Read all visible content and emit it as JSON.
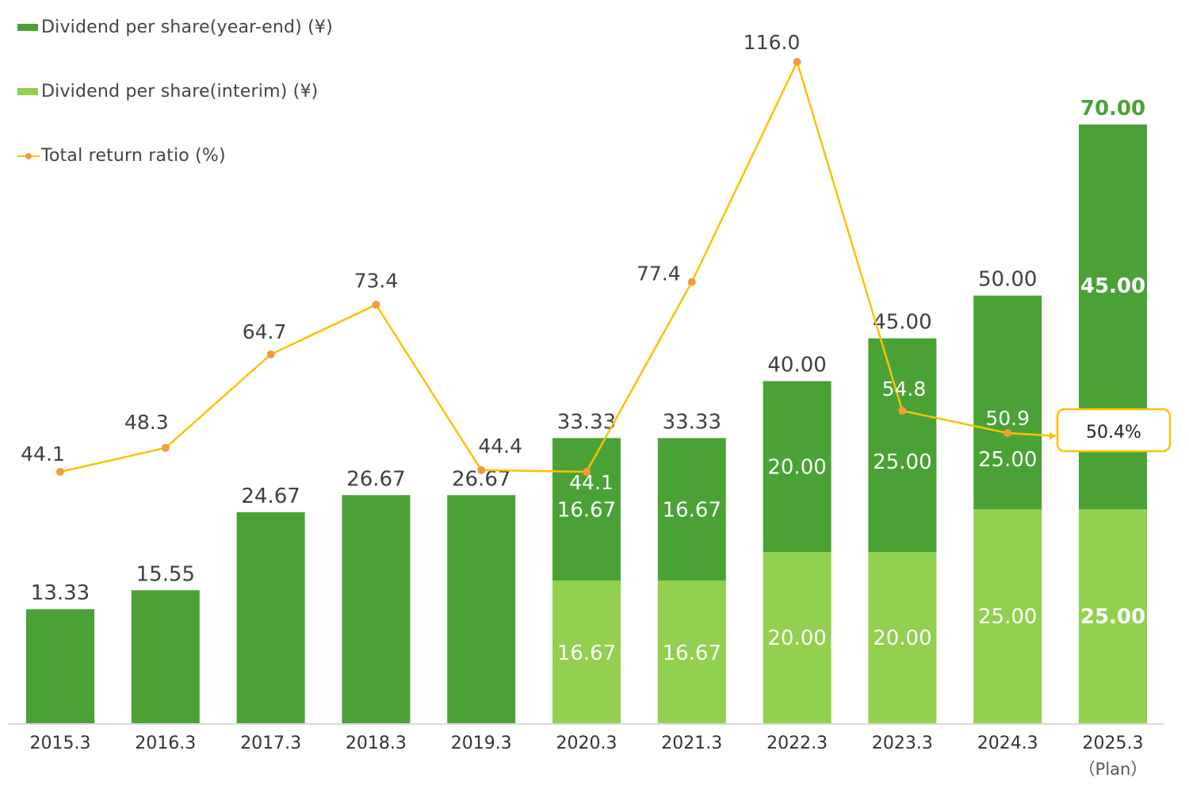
{
  "chart_data": {
    "type": "bar",
    "stacked": true,
    "categories": [
      "2015.3",
      "2016.3",
      "2017.3",
      "2018.3",
      "2019.3",
      "2020.3",
      "2021.3",
      "2022.3",
      "2023.3",
      "2024.3",
      "2025.3"
    ],
    "category_sublabels": [
      "",
      "",
      "",
      "",
      "",
      "",
      "",
      "",
      "",
      "",
      "（Plan）"
    ],
    "series": [
      {
        "name": "Dividend per share(interim) (¥)",
        "kind": "bar",
        "values": [
          0,
          0,
          0,
          0,
          0,
          16.67,
          16.67,
          20.0,
          20.0,
          25.0,
          25.0
        ],
        "labels": [
          "",
          "",
          "",
          "",
          "",
          "16.67",
          "16.67",
          "20.00",
          "20.00",
          "25.00",
          "25.00"
        ]
      },
      {
        "name": "Dividend per share(year-end) (¥)",
        "kind": "bar",
        "values": [
          13.33,
          15.55,
          24.67,
          26.67,
          26.67,
          16.67,
          16.67,
          20.0,
          25.0,
          25.0,
          45.0
        ],
        "labels": [
          "",
          "",
          "",
          "",
          "",
          "16.67",
          "16.67",
          "20.00",
          "25.00",
          "25.00",
          "45.00"
        ]
      },
      {
        "name": "Total return ratio (%)",
        "kind": "line",
        "values": [
          44.1,
          48.3,
          64.7,
          73.4,
          44.4,
          44.1,
          77.4,
          116.0,
          54.8,
          50.9,
          50.4
        ],
        "labels": [
          "44.1",
          "48.3",
          "64.7",
          "73.4",
          "44.4",
          "44.1",
          "77.4",
          "116.0",
          "54.8",
          "50.9",
          "50.4%"
        ]
      }
    ],
    "totals": [
      "13.33",
      "15.55",
      "24.67",
      "26.67",
      "26.67",
      "33.33",
      "33.33",
      "40.00",
      "45.00",
      "50.00",
      "70.00"
    ],
    "bar_axis_range": [
      0,
      80
    ],
    "line_axis_range": [
      0,
      135
    ],
    "grid": false,
    "legend_position": "top-left",
    "colors": {
      "year_end": "#4aa236",
      "interim": "#92d050",
      "line": "#ffc000",
      "marker": "#f39b3e",
      "label_dark": "#404040",
      "label_light": "#ffffff",
      "plan_total": "#4aa236",
      "baseline": "#d9d9d9"
    }
  }
}
